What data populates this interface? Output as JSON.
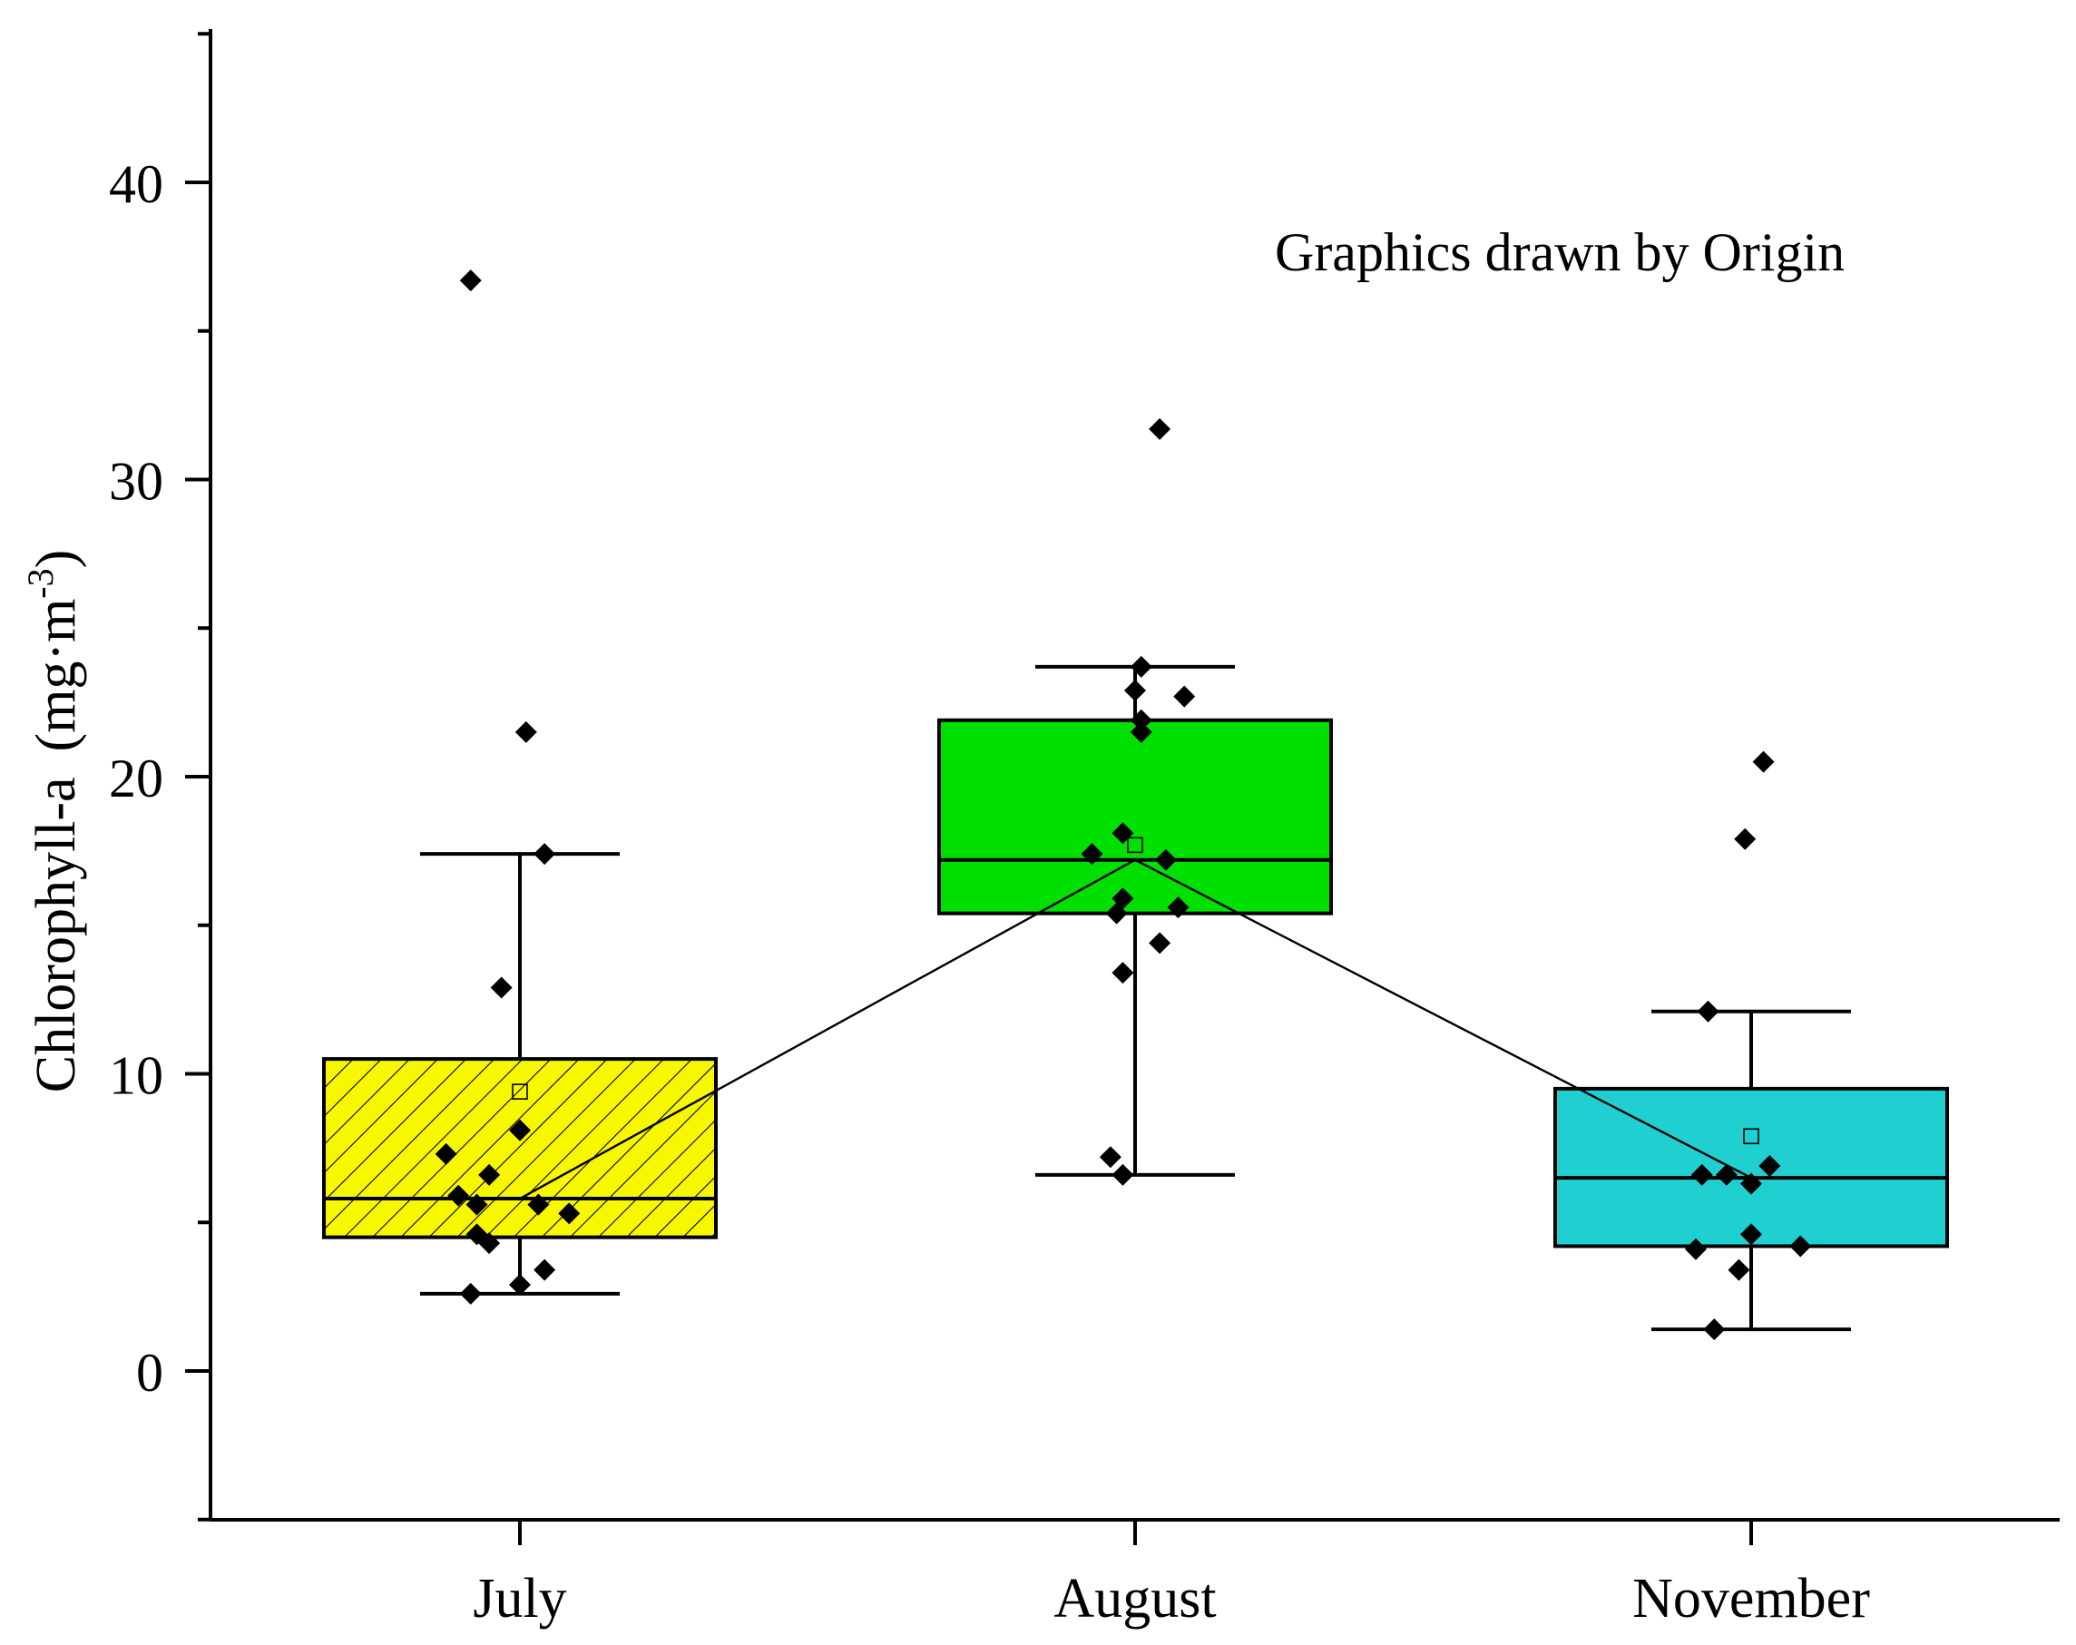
{
  "chart_data": {
    "type": "box",
    "annotation": "Graphics drawn by Origin",
    "ylabel": "Chlorophyll-a",
    "ylabel_unit": "(mg·m",
    "ylabel_unit_exponent": "-3",
    "ylabel_unit_close": ")",
    "ylim": [
      -5,
      45
    ],
    "yticks": [
      0,
      10,
      20,
      30,
      40
    ],
    "ytick_labels": [
      "0",
      "10",
      "20",
      "30",
      "40"
    ],
    "categories": [
      "July",
      "August",
      "November"
    ],
    "grid": false,
    "legend": "none",
    "mean_line": true,
    "boxes": [
      {
        "category": "July",
        "color": "#f7f700",
        "hatch": true,
        "q1": 4.5,
        "median": 5.8,
        "q3": 10.5,
        "whisker_low": 2.6,
        "whisker_high": 17.4,
        "mean": 9.4,
        "points": [
          {
            "x": -0.08,
            "y": 36.7
          },
          {
            "x": 0.01,
            "y": 21.5
          },
          {
            "x": 0.04,
            "y": 17.4
          },
          {
            "x": -0.03,
            "y": 12.9
          },
          {
            "x": 0.0,
            "y": 8.1
          },
          {
            "x": -0.12,
            "y": 7.3
          },
          {
            "x": -0.05,
            "y": 6.6
          },
          {
            "x": -0.1,
            "y": 5.9
          },
          {
            "x": -0.07,
            "y": 5.6
          },
          {
            "x": 0.03,
            "y": 5.6
          },
          {
            "x": 0.08,
            "y": 5.3
          },
          {
            "x": -0.07,
            "y": 4.6
          },
          {
            "x": -0.05,
            "y": 4.3
          },
          {
            "x": 0.04,
            "y": 3.4
          },
          {
            "x": 0.0,
            "y": 2.9
          },
          {
            "x": -0.08,
            "y": 2.6
          }
        ]
      },
      {
        "category": "August",
        "color": "#00e000",
        "hatch": false,
        "q1": 15.4,
        "median": 17.2,
        "q3": 21.9,
        "whisker_low": 6.6,
        "whisker_high": 23.7,
        "mean": 17.7,
        "points": [
          {
            "x": 0.04,
            "y": 31.7
          },
          {
            "x": 0.01,
            "y": 23.7
          },
          {
            "x": 0.08,
            "y": 22.7
          },
          {
            "x": 0.0,
            "y": 22.9
          },
          {
            "x": 0.01,
            "y": 21.9
          },
          {
            "x": 0.01,
            "y": 21.5
          },
          {
            "x": -0.02,
            "y": 18.1
          },
          {
            "x": -0.07,
            "y": 17.4
          },
          {
            "x": 0.05,
            "y": 17.2
          },
          {
            "x": -0.02,
            "y": 15.9
          },
          {
            "x": 0.07,
            "y": 15.6
          },
          {
            "x": -0.03,
            "y": 15.4
          },
          {
            "x": 0.04,
            "y": 14.4
          },
          {
            "x": -0.02,
            "y": 13.4
          },
          {
            "x": -0.04,
            "y": 7.2
          },
          {
            "x": -0.02,
            "y": 6.6
          }
        ]
      },
      {
        "category": "November",
        "color": "#20d0d0",
        "hatch": false,
        "q1": 4.2,
        "median": 6.5,
        "q3": 9.5,
        "whisker_low": 1.4,
        "whisker_high": 12.1,
        "mean": 7.9,
        "points": [
          {
            "x": 0.02,
            "y": 20.5
          },
          {
            "x": -0.01,
            "y": 17.9
          },
          {
            "x": -0.07,
            "y": 12.1
          },
          {
            "x": 0.03,
            "y": 6.9
          },
          {
            "x": -0.08,
            "y": 6.6
          },
          {
            "x": -0.04,
            "y": 6.6
          },
          {
            "x": 0.0,
            "y": 6.3
          },
          {
            "x": 0.0,
            "y": 4.6
          },
          {
            "x": 0.08,
            "y": 4.2
          },
          {
            "x": -0.09,
            "y": 4.1
          },
          {
            "x": -0.02,
            "y": 3.4
          },
          {
            "x": -0.06,
            "y": 1.4
          }
        ]
      }
    ]
  }
}
